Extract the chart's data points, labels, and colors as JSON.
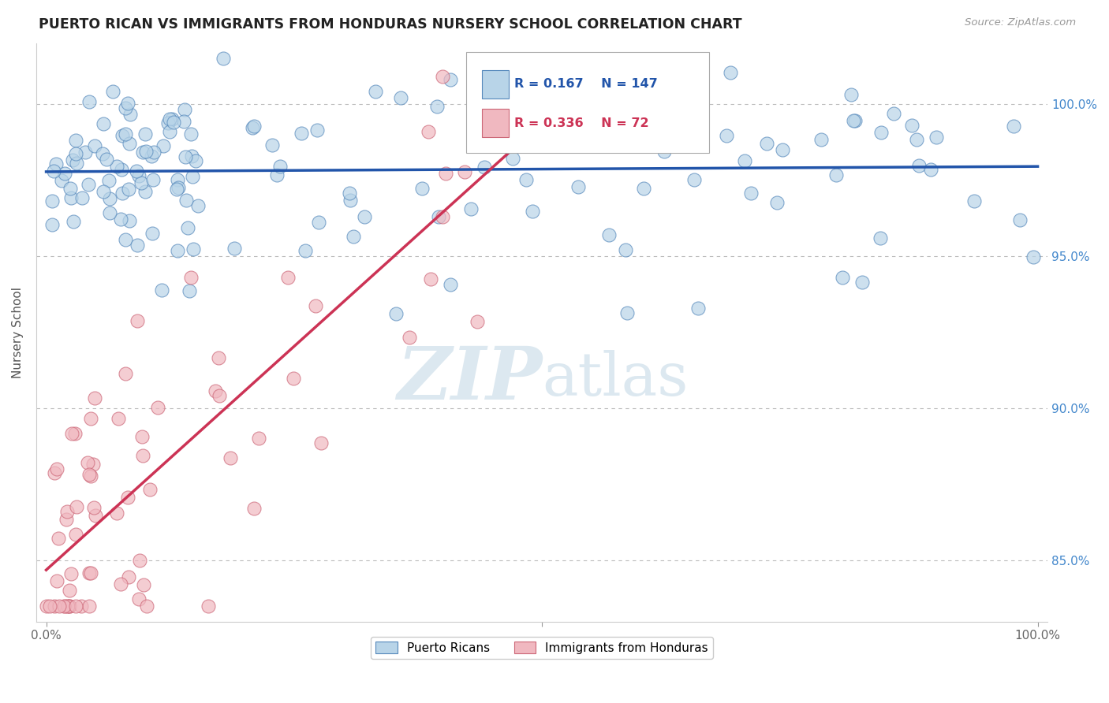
{
  "title": "PUERTO RICAN VS IMMIGRANTS FROM HONDURAS NURSERY SCHOOL CORRELATION CHART",
  "source": "Source: ZipAtlas.com",
  "ylabel": "Nursery School",
  "legend_blue_label": "Puerto Ricans",
  "legend_pink_label": "Immigrants from Honduras",
  "R_blue": 0.167,
  "N_blue": 147,
  "R_pink": 0.336,
  "N_pink": 72,
  "watermark_zip": "ZIP",
  "watermark_atlas": "atlas",
  "blue_fill": "#b8d4e8",
  "blue_edge": "#5588bb",
  "pink_fill": "#f0b8c0",
  "pink_edge": "#cc6677",
  "blue_line_color": "#2255aa",
  "pink_line_color": "#cc3355",
  "ytick_color": "#4488cc",
  "ymin": 83.0,
  "ymax": 102.0,
  "xmin": -0.01,
  "xmax": 1.01,
  "background_color": "#ffffff",
  "grid_color": "#bbbbbb"
}
